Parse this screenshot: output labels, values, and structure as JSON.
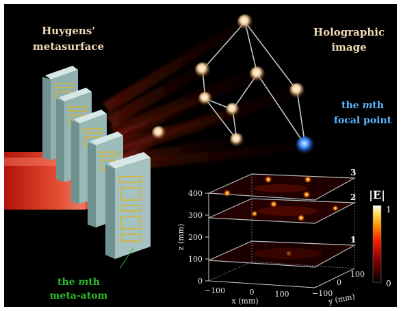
{
  "labels": {
    "metasurface_line1": "Huygens'",
    "metasurface_line2": "metasurface",
    "holo_line1": "Holographic",
    "holo_line2": "image",
    "focal_line1_pre": "the ",
    "focal_line1_em": "m",
    "focal_line1_post": "th",
    "focal_line2": "focal point",
    "atom_line1_pre": "the ",
    "atom_line1_em": "m",
    "atom_line1_post": "th",
    "atom_line2": "meta-atom"
  },
  "plot": {
    "z_axis_label": "z (mm)",
    "x_axis_label": "x (mm)",
    "y_axis_label": "y (mm)",
    "z_ticks": [
      "0",
      "100",
      "200",
      "300",
      "400"
    ],
    "x_ticks": [
      "−100",
      "0",
      "100"
    ],
    "y_ticks": [
      "−100",
      "0",
      "100"
    ],
    "plane_labels": [
      "1",
      "2",
      "3"
    ],
    "colorbar_title": "|E|",
    "colorbar_max": "1",
    "colorbar_min": "0"
  },
  "colors": {
    "focal_point": "#3d8bff",
    "label_text": "#f3d9b8",
    "focal_text": "#5ab8ff",
    "atom_text": "#2bb82b",
    "block": "#a6c2c0"
  }
}
